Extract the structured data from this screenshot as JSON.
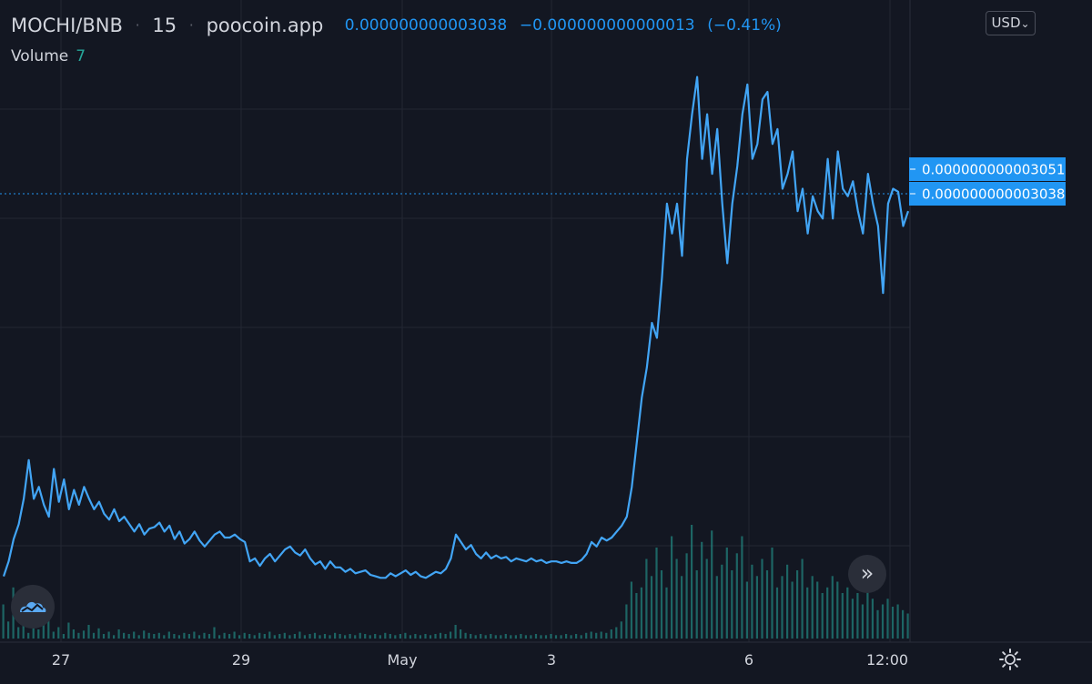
{
  "header": {
    "symbol": "MOCHI/BNB",
    "interval": "15",
    "source": "poocoin.app",
    "last_price": "0.000000000003038",
    "change_abs": "−0.000000000000013",
    "change_pct": "(−0.41%)",
    "separator": "·"
  },
  "volume": {
    "label": "Volume",
    "value": "7"
  },
  "currency": {
    "label": "USD",
    "chevron": "⌄"
  },
  "scroll_button": {
    "glyph": "»"
  },
  "icons": {
    "logo": "tradingview-cloud-logo-icon",
    "scroll": "chevron-double-right-icon",
    "settings": "gear-icon"
  },
  "colors": {
    "background": "#131722",
    "line": "#42a5f5",
    "volume": "#26a69a",
    "price_label": "#2196f3",
    "text": "#d1d4dc",
    "grid": "#232733"
  },
  "chart_data": {
    "type": "line",
    "x_tick_labels": [
      "27",
      "29",
      "May",
      "3",
      "6",
      "12:00"
    ],
    "price_labels": [
      "0.000000000003051",
      "0.000000000003038"
    ],
    "ylim_approx": [
      0.0,
      3.4e-12
    ],
    "series": [
      {
        "values": [
          0.1,
          0.2,
          0.35,
          0.45,
          0.62,
          0.88,
          0.62,
          0.7,
          0.58,
          0.5,
          0.82,
          0.6,
          0.75,
          0.55,
          0.68,
          0.58,
          0.7,
          0.62,
          0.55,
          0.6,
          0.52,
          0.48,
          0.55,
          0.47,
          0.5,
          0.45,
          0.4,
          0.45,
          0.38,
          0.42,
          0.43,
          0.46,
          0.4,
          0.44,
          0.35,
          0.4,
          0.32,
          0.35,
          0.4,
          0.34,
          0.3,
          0.34,
          0.38,
          0.4,
          0.36,
          0.36,
          0.38,
          0.35,
          0.33,
          0.2,
          0.22,
          0.17,
          0.22,
          0.25,
          0.2,
          0.24,
          0.28,
          0.3,
          0.26,
          0.24,
          0.28,
          0.22,
          0.18,
          0.2,
          0.15,
          0.2,
          0.16,
          0.16,
          0.13,
          0.15,
          0.12,
          0.13,
          0.14,
          0.11,
          0.1,
          0.09,
          0.09,
          0.12,
          0.1,
          0.12,
          0.14,
          0.11,
          0.13,
          0.1,
          0.09,
          0.11,
          0.13,
          0.12,
          0.15,
          0.22,
          0.38,
          0.33,
          0.28,
          0.31,
          0.25,
          0.22,
          0.26,
          0.22,
          0.24,
          0.22,
          0.23,
          0.2,
          0.22,
          0.21,
          0.2,
          0.22,
          0.2,
          0.21,
          0.19,
          0.2,
          0.2,
          0.19,
          0.2,
          0.19,
          0.19,
          0.21,
          0.25,
          0.33,
          0.3,
          0.36,
          0.34,
          0.36,
          0.4,
          0.44,
          0.5,
          0.7,
          1.0,
          1.3,
          1.5,
          1.8,
          1.7,
          2.1,
          2.6,
          2.4,
          2.6,
          2.25,
          2.9,
          3.2,
          3.45,
          2.9,
          3.2,
          2.8,
          3.1,
          2.6,
          2.2,
          2.6,
          2.85,
          3.2,
          3.4,
          2.9,
          3.0,
          3.3,
          3.35,
          3.0,
          3.1,
          2.7,
          2.8,
          2.95,
          2.55,
          2.7,
          2.4,
          2.65,
          2.55,
          2.5,
          2.9,
          2.5,
          2.95,
          2.7,
          2.65,
          2.75,
          2.55,
          2.4,
          2.8,
          2.6,
          2.45,
          2.0,
          2.6,
          2.7,
          2.68,
          2.45,
          2.55
        ]
      }
    ],
    "volume_values": [
      0.3,
      0.15,
      0.45,
      0.1,
      0.22,
      0.05,
      0.18,
      0.08,
      0.12,
      0.25,
      0.06,
      0.1,
      0.04,
      0.14,
      0.08,
      0.05,
      0.07,
      0.12,
      0.05,
      0.09,
      0.04,
      0.06,
      0.03,
      0.08,
      0.05,
      0.04,
      0.06,
      0.03,
      0.07,
      0.05,
      0.04,
      0.05,
      0.03,
      0.06,
      0.04,
      0.03,
      0.05,
      0.04,
      0.06,
      0.03,
      0.05,
      0.04,
      0.1,
      0.03,
      0.05,
      0.04,
      0.06,
      0.03,
      0.05,
      0.04,
      0.03,
      0.05,
      0.04,
      0.06,
      0.03,
      0.04,
      0.05,
      0.03,
      0.04,
      0.06,
      0.03,
      0.04,
      0.05,
      0.03,
      0.04,
      0.03,
      0.05,
      0.04,
      0.03,
      0.04,
      0.03,
      0.05,
      0.04,
      0.03,
      0.04,
      0.03,
      0.05,
      0.04,
      0.03,
      0.04,
      0.05,
      0.03,
      0.04,
      0.03,
      0.04,
      0.03,
      0.04,
      0.05,
      0.04,
      0.06,
      0.12,
      0.08,
      0.05,
      0.04,
      0.03,
      0.04,
      0.03,
      0.04,
      0.03,
      0.03,
      0.04,
      0.03,
      0.03,
      0.04,
      0.03,
      0.03,
      0.04,
      0.03,
      0.03,
      0.04,
      0.03,
      0.03,
      0.04,
      0.03,
      0.04,
      0.03,
      0.05,
      0.06,
      0.05,
      0.06,
      0.05,
      0.08,
      0.1,
      0.15,
      0.3,
      0.5,
      0.4,
      0.45,
      0.7,
      0.55,
      0.8,
      0.6,
      0.45,
      0.9,
      0.7,
      0.55,
      0.75,
      1.0,
      0.6,
      0.85,
      0.7,
      0.95,
      0.55,
      0.65,
      0.8,
      0.6,
      0.75,
      0.9,
      0.5,
      0.65,
      0.55,
      0.7,
      0.6,
      0.8,
      0.45,
      0.55,
      0.65,
      0.5,
      0.6,
      0.7,
      0.45,
      0.55,
      0.5,
      0.4,
      0.45,
      0.55,
      0.5,
      0.4,
      0.45,
      0.35,
      0.4,
      0.3,
      0.45,
      0.35,
      0.25,
      0.3,
      0.35,
      0.28,
      0.3,
      0.25,
      0.22
    ],
    "grid": true,
    "legend": "top-left"
  }
}
